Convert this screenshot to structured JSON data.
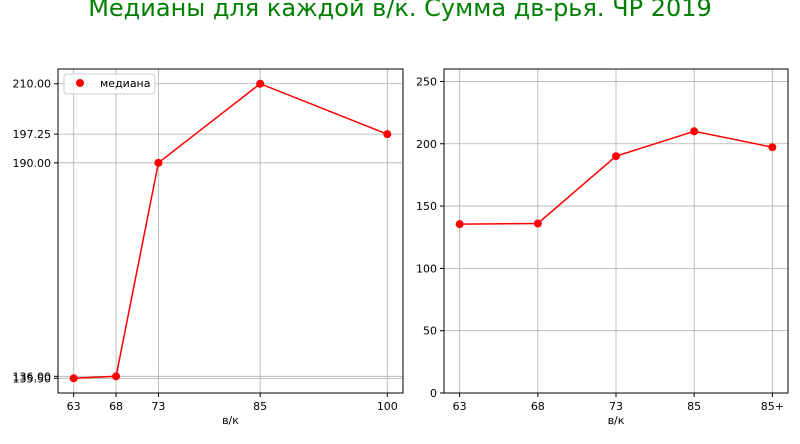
{
  "figure": {
    "title": "Медианы для каждой в/к. Сумма дв-рья. ЧР 2019",
    "title_color": "#008000",
    "series_color": "#ff0000"
  },
  "chart_data": [
    {
      "type": "line",
      "x_scale": "numeric",
      "x": [
        63,
        68,
        73,
        85,
        100
      ],
      "series": [
        {
          "name": "медиана",
          "values": [
            135.5,
            136.0,
            190.0,
            210.0,
            197.25
          ]
        }
      ],
      "xticks": [
        "63",
        "68",
        "73",
        "85",
        "100"
      ],
      "yticks": [
        {
          "value": 135.5,
          "label": "135.50"
        },
        {
          "value": 136.0,
          "label": "136.00"
        },
        {
          "value": 190.0,
          "label": "190.00"
        },
        {
          "value": 197.25,
          "label": "197.25"
        },
        {
          "value": 210.0,
          "label": "210.00"
        }
      ],
      "xlabel": "в/к",
      "ylabel": "",
      "xlim": [
        61.15,
        101.85
      ],
      "ylim": [
        131.78,
        213.73
      ],
      "grid": true,
      "legend": "upper left",
      "markers": true
    },
    {
      "type": "line",
      "x_scale": "categorical",
      "categories": [
        "63",
        "68",
        "73",
        "85",
        "85+"
      ],
      "series": [
        {
          "values": [
            135.5,
            136.0,
            190.0,
            210.0,
            197.25
          ]
        }
      ],
      "yticks": [
        {
          "value": 0,
          "label": "0"
        },
        {
          "value": 50,
          "label": "50"
        },
        {
          "value": 100,
          "label": "100"
        },
        {
          "value": 150,
          "label": "150"
        },
        {
          "value": 200,
          "label": "200"
        },
        {
          "value": 250,
          "label": "250"
        }
      ],
      "xlabel": "в/к",
      "ylabel": "",
      "xlim": [
        -0.2,
        4.2
      ],
      "ylim": [
        0,
        260
      ],
      "grid": true,
      "legend": "none",
      "markers": true
    }
  ]
}
